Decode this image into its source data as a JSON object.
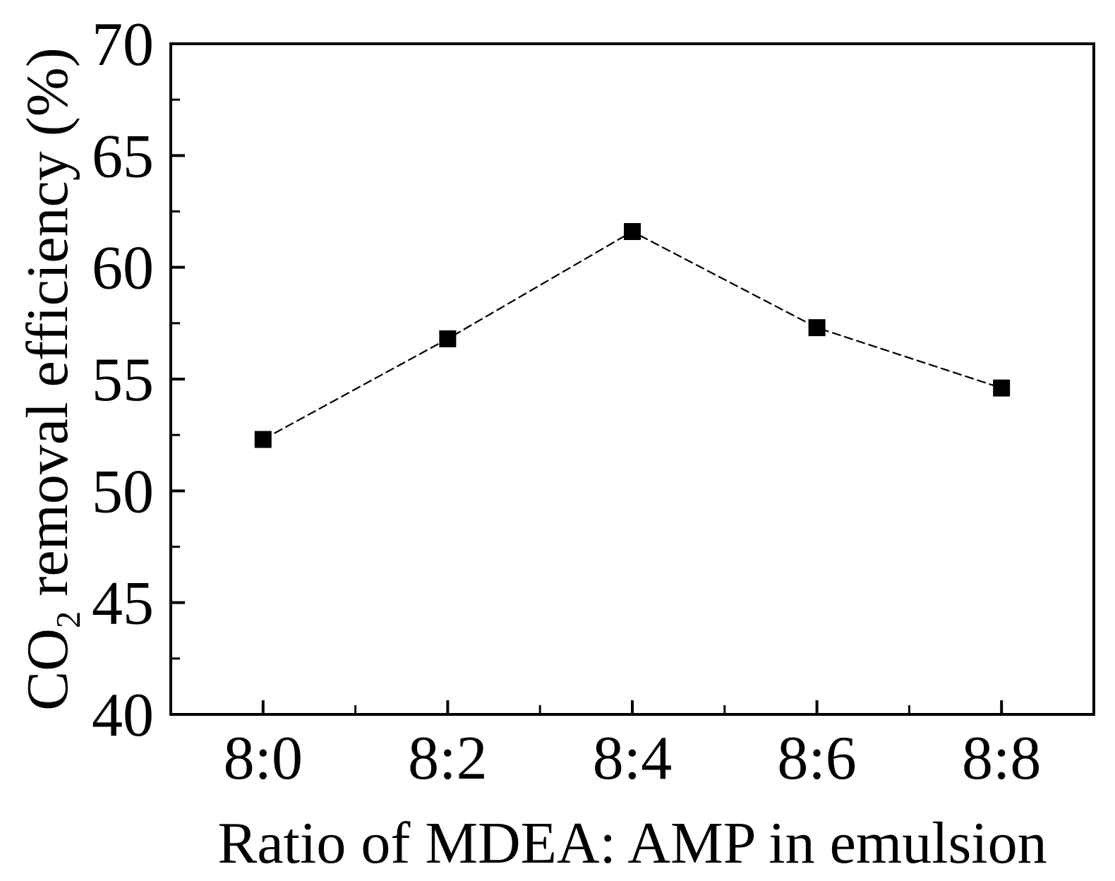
{
  "chart_data": {
    "type": "line",
    "title": "",
    "categories": [
      "8:0",
      "8:2",
      "8:4",
      "8:6",
      "8:8"
    ],
    "values": [
      52.3,
      56.8,
      61.6,
      57.3,
      54.6
    ],
    "xlabel": "Ratio of MDEA: AMP in emulsion",
    "ylabel": "CO2 removal efficiency (%)",
    "ylabel_rich": {
      "prefix": "CO",
      "subscript": "2",
      "suffix": " removal efficiency (%)"
    },
    "ylim": [
      40,
      70
    ],
    "yticks_major": [
      40,
      45,
      50,
      55,
      60,
      65,
      70
    ],
    "yticks_minor": [
      42.5,
      47.5,
      52.5,
      57.5,
      62.5,
      67.5
    ],
    "x_minor_between_categories": true,
    "grid": false,
    "legend": "none",
    "marker": "filled-square",
    "line_style": "dashed",
    "colors": {
      "foreground": "#000000",
      "background": "#ffffff"
    }
  }
}
